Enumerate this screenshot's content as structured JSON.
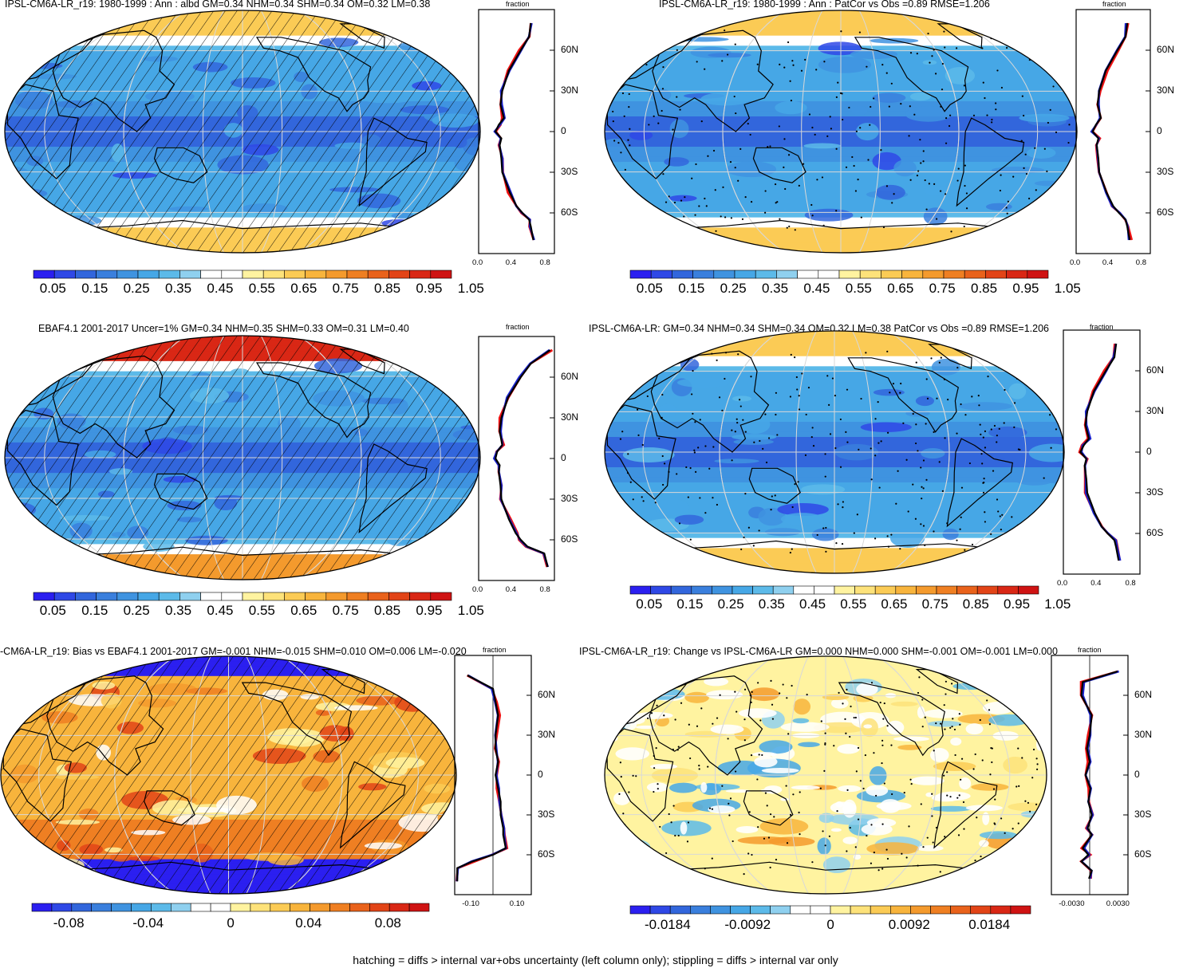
{
  "footer": "hatching = diffs > internal var+obs uncertainty (left column only); stippling = diffs > internal var only",
  "panels": [
    {
      "id": "p1",
      "title": "IPSL-CM6A-LR_r19: 1980-1999 : Ann : albd GM=0.34 NHM=0.34 SHM=0.34 OM=0.32 LM=0.38",
      "zonal_title": "fraction",
      "lat_labels": [
        "60N",
        "30N",
        "0",
        "30S",
        "60S"
      ],
      "x_ticks": [
        "0.0",
        "0.4",
        "0.8"
      ],
      "colorbar_labels": [
        "0.05",
        "0.15",
        "0.25",
        "0.35",
        "0.45",
        "0.55",
        "0.65",
        "0.75",
        "0.85",
        "0.95",
        "1.05"
      ]
    },
    {
      "id": "p2",
      "title": "IPSL-CM6A-LR_r19: 1980-1999 : Ann : PatCor vs Obs =0.89 RMSE=1.206",
      "zonal_title": "fraction",
      "lat_labels": [
        "60N",
        "30N",
        "0",
        "30S",
        "60S"
      ],
      "x_ticks": [
        "0.0",
        "0.4",
        "0.8"
      ],
      "colorbar_labels": [
        "0.05",
        "0.15",
        "0.25",
        "0.35",
        "0.45",
        "0.55",
        "0.65",
        "0.75",
        "0.85",
        "0.95",
        "1.05"
      ]
    },
    {
      "id": "p3",
      "title": "EBAF4.1 2001-2017 Uncer=1% GM=0.34 NHM=0.35 SHM=0.33 OM=0.31 LM=0.40",
      "zonal_title": "fraction",
      "lat_labels": [
        "60N",
        "30N",
        "0",
        "30S",
        "60S"
      ],
      "x_ticks": [
        "0.0",
        "0.4",
        "0.8"
      ],
      "colorbar_labels": [
        "0.05",
        "0.15",
        "0.25",
        "0.35",
        "0.45",
        "0.55",
        "0.65",
        "0.75",
        "0.85",
        "0.95",
        "1.05"
      ]
    },
    {
      "id": "p4",
      "title": "IPSL-CM6A-LR: GM=0.34 NHM=0.34 SHM=0.34 OM=0.32 LM=0.38 PatCor vs Obs =0.89 RMSE=1.206",
      "zonal_title": "fraction",
      "lat_labels": [
        "60N",
        "30N",
        "0",
        "30S",
        "60S"
      ],
      "x_ticks": [
        "0.0",
        "0.4",
        "0.8"
      ],
      "colorbar_labels": [
        "0.05",
        "0.15",
        "0.25",
        "0.35",
        "0.45",
        "0.55",
        "0.65",
        "0.75",
        "0.85",
        "0.95",
        "1.05"
      ]
    },
    {
      "id": "p5",
      "title": "-CM6A-LR_r19: Bias vs EBAF4.1 2001-2017 GM=-0.001 NHM=-0.015 SHM=0.010 OM=0.006 LM=-0.020",
      "zonal_title": "fraction",
      "lat_labels": [
        "60N",
        "30N",
        "0",
        "30S",
        "60S"
      ],
      "x_ticks": [
        "-0.10",
        "0.10"
      ],
      "colorbar_labels": [
        "-0.08",
        "-0.04",
        "0",
        "0.04",
        "0.08"
      ]
    },
    {
      "id": "p6",
      "title": "IPSL-CM6A-LR_r19: Change vs IPSL-CM6A-LR GM=0.000 NHM=0.000 SHM=-0.001 OM=-0.001 LM=0.000",
      "zonal_title": "fraction",
      "lat_labels": [
        "60N",
        "30N",
        "0",
        "30S",
        "60S"
      ],
      "x_ticks": [
        "-0.0030",
        "0.0030"
      ],
      "colorbar_labels": [
        "-0.0184",
        "-0.0092",
        "0",
        "0.0092",
        "0.0184"
      ]
    }
  ],
  "colors": {
    "seq": [
      "#2b1ff0",
      "#2f48e6",
      "#3266dc",
      "#3a7fdd",
      "#3f93e0",
      "#46a7e6",
      "#5cbae9",
      "#8fd0ef",
      "#ffffff",
      "#ffffff",
      "#fff3a0",
      "#fde27a",
      "#fbcb55",
      "#f8b43c",
      "#f49a2d",
      "#ef7f22",
      "#e9621b",
      "#e24417",
      "#d92715",
      "#cf1313"
    ],
    "div": [
      "#2b1ff0",
      "#2f48e6",
      "#3266dc",
      "#3a7fdd",
      "#3f93e0",
      "#46a7e6",
      "#5cbae9",
      "#8fd0ef",
      "#ffffff",
      "#ffffff",
      "#fff3a0",
      "#fde27a",
      "#fbcb55",
      "#f8b43c",
      "#f49a2d",
      "#ef7f22",
      "#e9621b",
      "#e24417",
      "#d92715",
      "#cf1313"
    ],
    "model_line": "#000000",
    "obs_red": "#ee1111",
    "obs_blue": "#1a22cc"
  },
  "chart_data": [
    {
      "type": "heatmap",
      "panel": "p1",
      "title": "IPSL-CM6A-LR_r19: 1980-1999 : Ann : albd GM=0.34 NHM=0.34 SHM=0.34 OM=0.32 LM=0.38",
      "projection": "robinson",
      "colorbar_range": [
        0.0,
        1.1
      ],
      "hatching": true,
      "zonal_mean": {
        "xlim": [
          0.0,
          0.9
        ],
        "lat": [
          80,
          70,
          60,
          45,
          30,
          20,
          10,
          5,
          0,
          -5,
          -10,
          -20,
          -30,
          -45,
          -55,
          -60,
          -65,
          -70,
          -80
        ],
        "model": [
          0.62,
          0.6,
          0.5,
          0.36,
          0.28,
          0.26,
          0.3,
          0.24,
          0.2,
          0.27,
          0.25,
          0.27,
          0.28,
          0.37,
          0.45,
          0.52,
          0.6,
          0.62,
          0.65
        ]
      }
    },
    {
      "type": "heatmap",
      "panel": "p2",
      "title": "IPSL-CM6A-LR_r19: 1980-1999 : Ann : PatCor vs Obs =0.89 RMSE=1.206",
      "projection": "robinson",
      "colorbar_range": [
        0.0,
        1.1
      ],
      "stippling": true,
      "zonal_mean": {
        "xlim": [
          0.0,
          0.9
        ],
        "lat": [
          80,
          70,
          60,
          45,
          30,
          20,
          10,
          5,
          0,
          -5,
          -10,
          -20,
          -30,
          -45,
          -55,
          -60,
          -65,
          -70,
          -80
        ],
        "model": [
          0.62,
          0.6,
          0.5,
          0.36,
          0.28,
          0.26,
          0.3,
          0.24,
          0.2,
          0.27,
          0.25,
          0.27,
          0.28,
          0.37,
          0.45,
          0.52,
          0.6,
          0.62,
          0.65
        ]
      }
    },
    {
      "type": "heatmap",
      "panel": "p3",
      "title": "EBAF4.1 2001-2017 Uncer=1% GM=0.34 NHM=0.35 SHM=0.33 OM=0.31 LM=0.40",
      "projection": "robinson",
      "colorbar_range": [
        0.0,
        1.1
      ],
      "hatching": true,
      "zonal_mean": {
        "xlim": [
          0.0,
          0.9
        ],
        "lat": [
          80,
          70,
          60,
          45,
          30,
          20,
          10,
          5,
          0,
          -5,
          -10,
          -20,
          -30,
          -45,
          -55,
          -60,
          -65,
          -70,
          -80
        ],
        "model": [
          0.85,
          0.62,
          0.5,
          0.35,
          0.27,
          0.25,
          0.28,
          0.22,
          0.2,
          0.25,
          0.24,
          0.26,
          0.27,
          0.36,
          0.44,
          0.5,
          0.58,
          0.78,
          0.82
        ]
      }
    },
    {
      "type": "heatmap",
      "panel": "p4",
      "title": "IPSL-CM6A-LR: GM=0.34 NHM=0.34 SHM=0.34 OM=0.32 LM=0.38 PatCor vs Obs =0.89 RMSE=1.206",
      "projection": "robinson",
      "colorbar_range": [
        0.0,
        1.1
      ],
      "stippling": true,
      "zonal_mean": {
        "xlim": [
          0.0,
          0.9
        ],
        "lat": [
          80,
          70,
          60,
          45,
          30,
          20,
          10,
          5,
          0,
          -5,
          -10,
          -20,
          -30,
          -45,
          -55,
          -60,
          -65,
          -70,
          -80
        ],
        "model": [
          0.62,
          0.6,
          0.5,
          0.36,
          0.28,
          0.26,
          0.3,
          0.24,
          0.2,
          0.27,
          0.25,
          0.27,
          0.28,
          0.37,
          0.45,
          0.52,
          0.6,
          0.62,
          0.65
        ]
      }
    },
    {
      "type": "heatmap",
      "panel": "p5",
      "title": "-CM6A-LR_r19: Bias vs EBAF4.1 2001-2017 GM=-0.001 NHM=-0.015 SHM=0.010 OM=0.006 LM=-0.020",
      "projection": "robinson",
      "colorbar_range": [
        -0.1,
        0.1
      ],
      "hatching": true,
      "zonal_mean": {
        "xlim": [
          -0.15,
          0.15
        ],
        "lat": [
          75,
          65,
          55,
          45,
          30,
          20,
          10,
          0,
          -10,
          -20,
          -30,
          -40,
          -45,
          -55,
          -60,
          -65,
          -70,
          -80
        ],
        "model": [
          -0.1,
          0.0,
          0.01,
          0.02,
          0.01,
          0.01,
          0.02,
          0.01,
          0.02,
          0.03,
          0.03,
          0.04,
          0.04,
          0.05,
          0.0,
          -0.08,
          -0.14,
          -0.14
        ]
      }
    },
    {
      "type": "heatmap",
      "panel": "p6",
      "title": "IPSL-CM6A-LR_r19: Change vs IPSL-CM6A-LR GM=0.000 NHM=0.000 SHM=-0.001 OM=-0.001 LM=0.000",
      "projection": "robinson",
      "colorbar_range": [
        -0.023,
        0.023
      ],
      "stippling": true,
      "zonal_mean": {
        "xlim": [
          -0.0055,
          0.0055
        ],
        "lat": [
          78,
          70,
          60,
          45,
          30,
          20,
          10,
          0,
          -10,
          -20,
          -30,
          -40,
          -45,
          -55,
          -60,
          -65,
          -72,
          -78
        ],
        "model": [
          0.004,
          -0.001,
          -0.0012,
          0.0003,
          0.0,
          -0.0004,
          0.0,
          -0.0006,
          0.0001,
          -0.0002,
          0.0003,
          -0.0003,
          0.0003,
          -0.001,
          -0.0002,
          -0.0012,
          0.0003,
          -0.0001
        ]
      }
    }
  ]
}
